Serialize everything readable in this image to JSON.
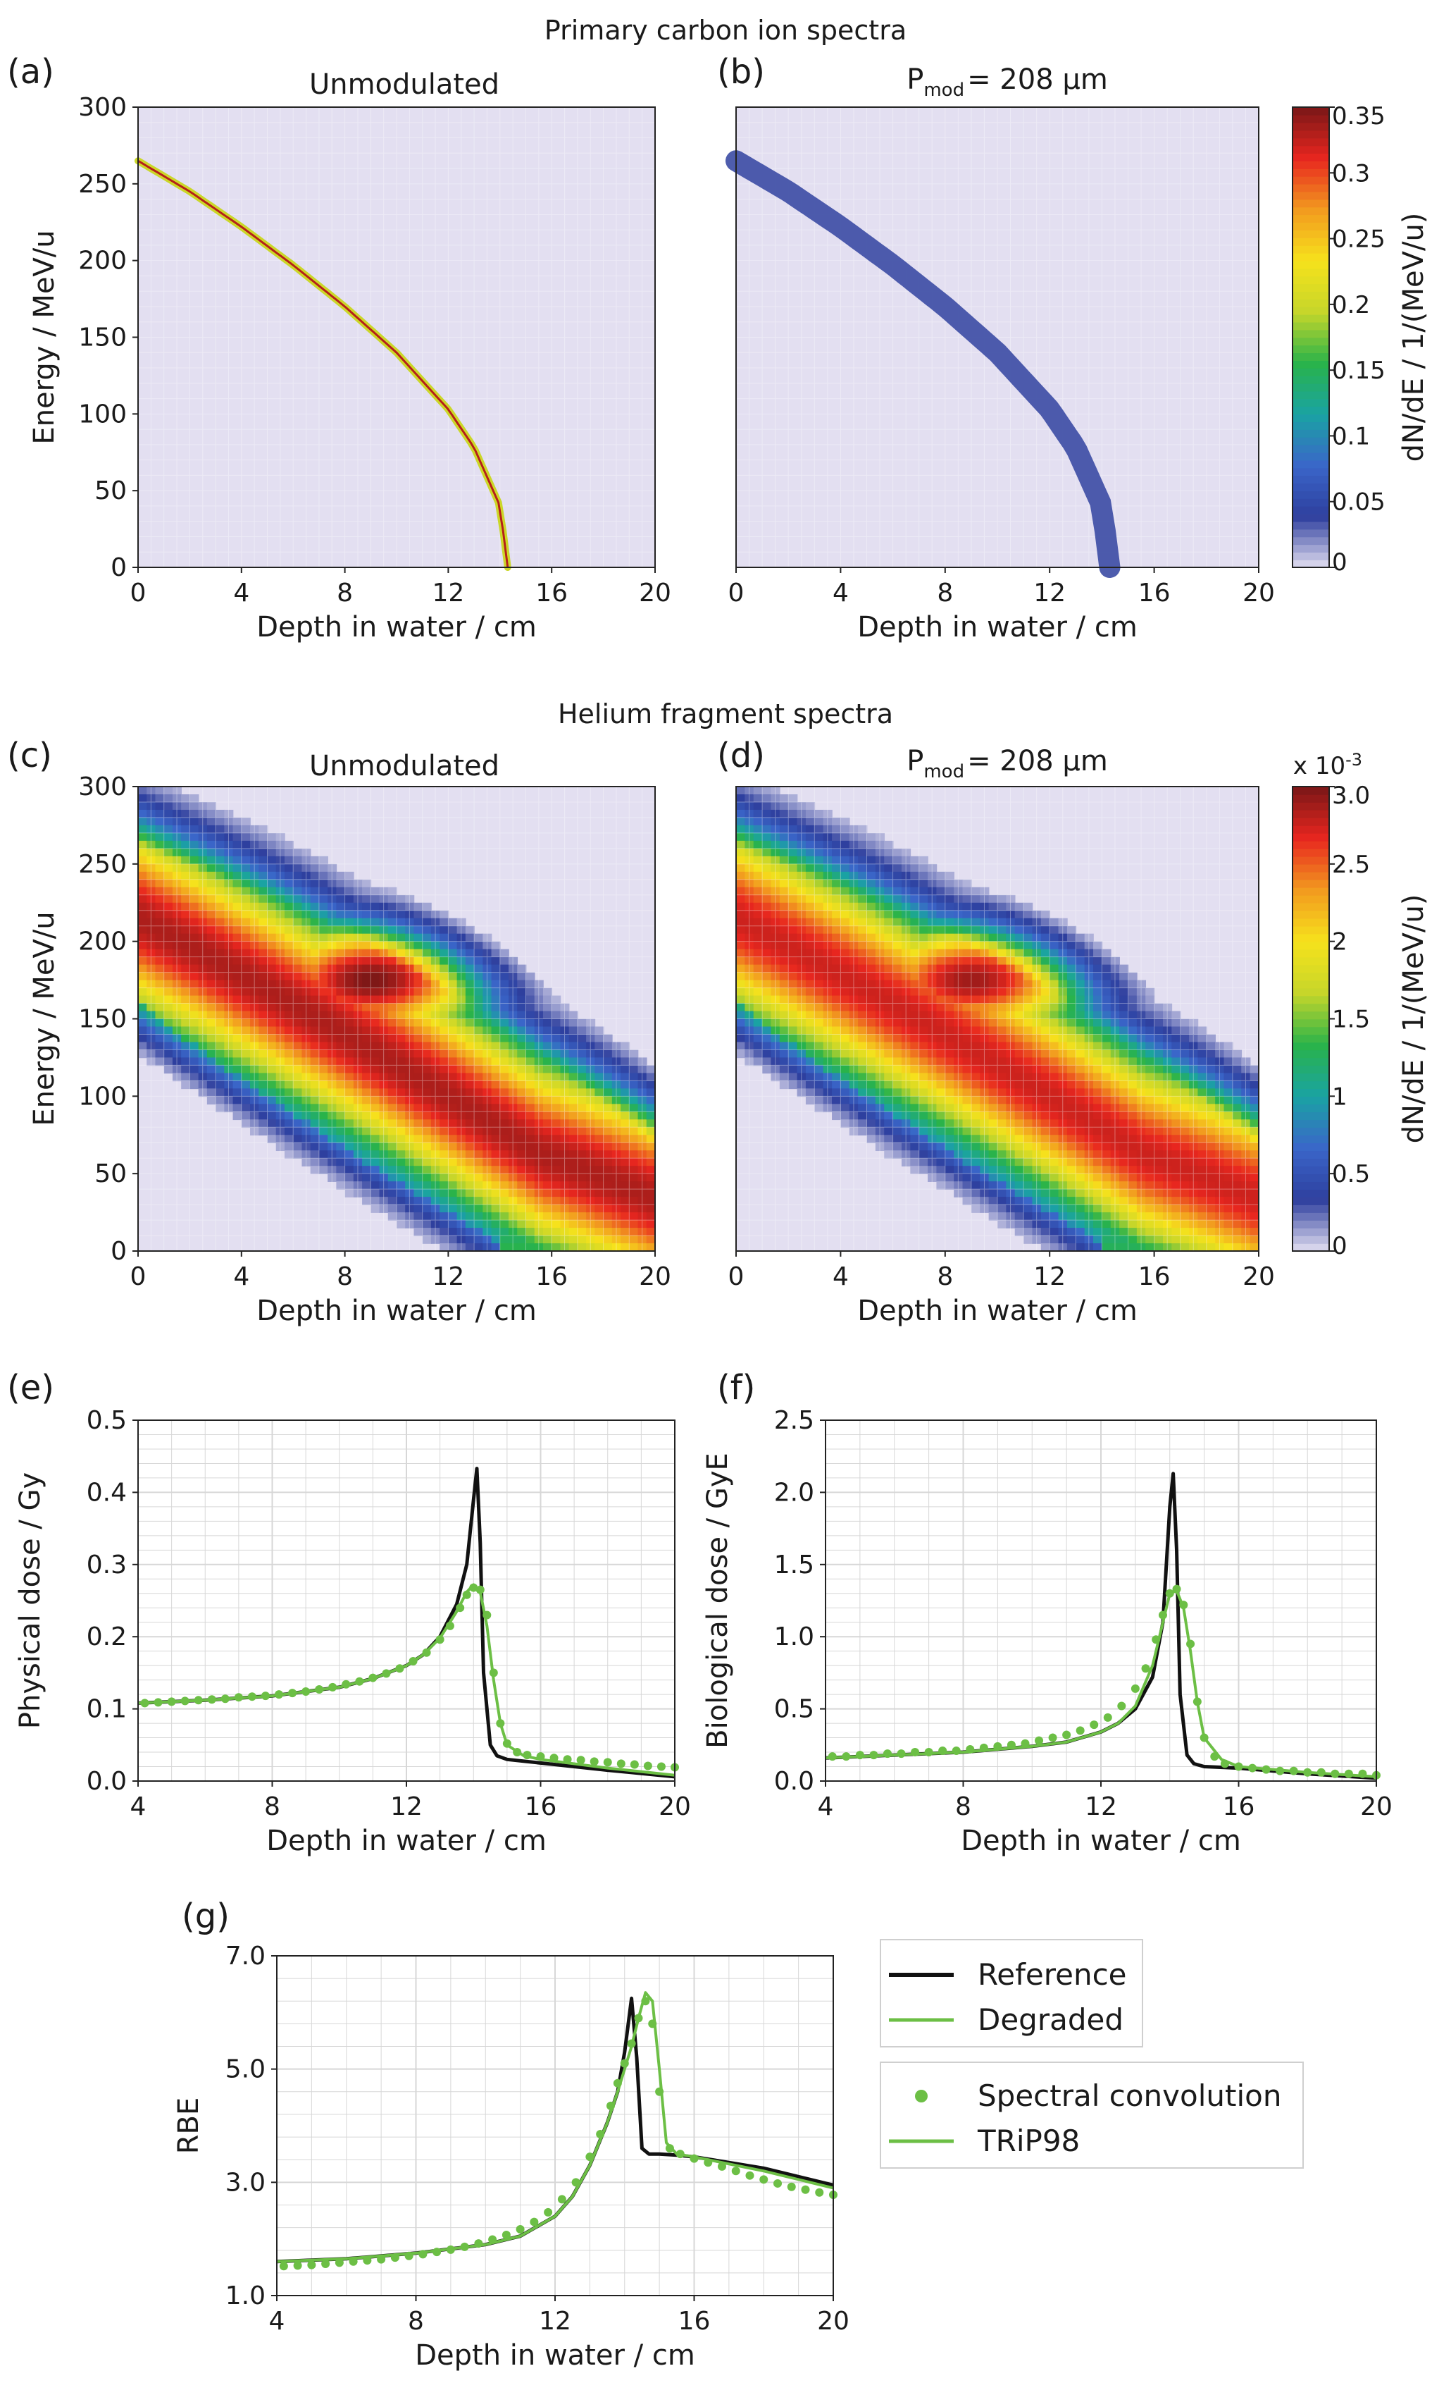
{
  "figure": {
    "section_titles": [
      "Primary carbon ion spectra",
      "Helium fragment spectra"
    ],
    "panel_letters": [
      "(a)",
      "(b)",
      "(c)",
      "(d)",
      "(e)",
      "(f)",
      "(g)"
    ],
    "panel_titles": {
      "a": "Unmodulated",
      "b_prefix": "P",
      "b_sub": "mod",
      "b_suffix": "= 208 µm",
      "c": "Unmodulated",
      "d_prefix": "P",
      "d_sub": "mod",
      "d_suffix": "= 208 µm"
    },
    "colormap": {
      "name": "jet-like",
      "stops": [
        "#e3dff1",
        "#2e3f9e",
        "#3a66c9",
        "#1aa3a3",
        "#29b34a",
        "#c6d62a",
        "#f6e21c",
        "#f29a1f",
        "#e8261f",
        "#7a1717"
      ]
    },
    "colors": {
      "reference": "#111111",
      "degraded": "#6cbf45",
      "grid": "#d7d7d7",
      "background_low": "#e3dff1"
    }
  },
  "chart_data": [
    {
      "id": "a",
      "type": "heatmap",
      "title": "Unmodulated",
      "xlabel": "Depth in water / cm",
      "ylabel": "Energy / MeV/u",
      "xlim": [
        0,
        20
      ],
      "ylim": [
        0,
        300
      ],
      "xticks": [
        0,
        4,
        8,
        12,
        16,
        20
      ],
      "yticks": [
        0,
        50,
        100,
        150,
        200,
        250,
        300
      ],
      "ridge": {
        "x": [
          0,
          2,
          4,
          6,
          8,
          10,
          12,
          13,
          14,
          14.3
        ],
        "y": [
          265,
          245,
          222,
          197,
          170,
          140,
          103,
          78,
          40,
          0
        ]
      },
      "ridge_peak": 0.33,
      "colorbar": {
        "label": "dN/dE  /  1/(MeV/u)",
        "ticks": [
          0,
          0.05,
          0.1,
          0.15,
          0.2,
          0.25,
          0.3,
          0.35
        ],
        "lim": [
          0,
          0.35
        ],
        "multiplier": ""
      }
    },
    {
      "id": "b",
      "type": "heatmap",
      "title": "P mod = 208 µm",
      "xlabel": "Depth in water / cm",
      "ylabel": "",
      "xlim": [
        0,
        20
      ],
      "ylim": [
        0,
        300
      ],
      "xticks": [
        0,
        4,
        8,
        12,
        16,
        20
      ],
      "ridge": {
        "x": [
          0,
          2,
          4,
          6,
          8,
          10,
          12,
          13,
          14,
          14.3
        ],
        "y": [
          265,
          245,
          222,
          197,
          170,
          140,
          103,
          78,
          40,
          0
        ]
      },
      "ridge_peak": 0.06
    },
    {
      "id": "c",
      "type": "heatmap",
      "title": "Unmodulated",
      "xlabel": "Depth in water / cm",
      "ylabel": "Energy / MeV/u",
      "xlim": [
        0,
        20
      ],
      "ylim": [
        0,
        300
      ],
      "xticks": [
        0,
        4,
        8,
        12,
        16,
        20
      ],
      "yticks": [
        0,
        50,
        100,
        150,
        200,
        250,
        300
      ],
      "peak_value": 0.0029,
      "peak_location": {
        "x": 9,
        "y": 175
      },
      "colorbar": {
        "label": "dN/dE  /  1/(MeV/u)",
        "ticks": [
          0,
          0.5,
          1,
          1.5,
          2,
          2.5,
          3.0
        ],
        "tick_labels": [
          "0",
          "0.5",
          "1",
          "1.5",
          "2",
          "2.5",
          "3.0"
        ],
        "lim": [
          0,
          3.0
        ],
        "multiplier": "x 10",
        "multiplier_exp": "-3"
      }
    },
    {
      "id": "d",
      "type": "heatmap",
      "title": "P mod = 208 µm",
      "xlabel": "Depth in water / cm",
      "ylabel": "",
      "xlim": [
        0,
        20
      ],
      "ylim": [
        0,
        300
      ],
      "xticks": [
        0,
        4,
        8,
        12,
        16,
        20
      ],
      "peak_value": 0.0028,
      "peak_location": {
        "x": 9,
        "y": 175
      }
    },
    {
      "id": "e",
      "type": "line",
      "xlabel": "Depth in water / cm",
      "ylabel": "Physical dose / Gy",
      "xlim": [
        4,
        20
      ],
      "ylim": [
        0,
        0.5
      ],
      "xticks": [
        4,
        8,
        12,
        16,
        20
      ],
      "yticks": [
        0.0,
        0.1,
        0.2,
        0.3,
        0.4,
        0.5
      ],
      "ytick_labels": [
        "0.0",
        "0.1",
        "0.2",
        "0.3",
        "0.4",
        "0.5"
      ],
      "series": [
        {
          "role": "reference",
          "x": [
            4,
            6,
            8,
            10,
            11,
            12,
            12.5,
            13,
            13.5,
            13.8,
            14.0,
            14.1,
            14.2,
            14.3,
            14.5,
            14.7,
            15,
            16,
            18,
            20
          ],
          "y": [
            0.108,
            0.112,
            0.118,
            0.13,
            0.142,
            0.16,
            0.175,
            0.2,
            0.245,
            0.3,
            0.39,
            0.433,
            0.33,
            0.15,
            0.05,
            0.035,
            0.03,
            0.025,
            0.015,
            0.006
          ]
        },
        {
          "role": "trip98",
          "x": [
            4,
            6,
            8,
            10,
            11,
            12,
            12.5,
            13,
            13.5,
            13.8,
            14.0,
            14.2,
            14.4,
            14.6,
            14.8,
            15,
            15.5,
            16,
            18,
            20
          ],
          "y": [
            0.108,
            0.112,
            0.118,
            0.13,
            0.142,
            0.16,
            0.175,
            0.198,
            0.235,
            0.262,
            0.272,
            0.262,
            0.215,
            0.14,
            0.08,
            0.05,
            0.035,
            0.03,
            0.018,
            0.008
          ]
        },
        {
          "role": "convolution",
          "x": [
            4.2,
            4.6,
            5.0,
            5.4,
            5.8,
            6.2,
            6.6,
            7.0,
            7.4,
            7.8,
            8.2,
            8.6,
            9.0,
            9.4,
            9.8,
            10.2,
            10.6,
            11.0,
            11.4,
            11.8,
            12.2,
            12.6,
            13.0,
            13.3,
            13.6,
            13.8,
            14.0,
            14.2,
            14.4,
            14.6,
            14.8,
            15.0,
            15.3,
            15.6,
            16.0,
            16.4,
            16.8,
            17.2,
            17.6,
            18.0,
            18.4,
            18.8,
            19.2,
            19.6,
            20.0
          ],
          "y": [
            0.108,
            0.109,
            0.11,
            0.111,
            0.112,
            0.113,
            0.114,
            0.116,
            0.117,
            0.118,
            0.12,
            0.122,
            0.124,
            0.127,
            0.13,
            0.134,
            0.138,
            0.143,
            0.149,
            0.156,
            0.166,
            0.178,
            0.196,
            0.215,
            0.24,
            0.258,
            0.268,
            0.265,
            0.23,
            0.15,
            0.08,
            0.052,
            0.04,
            0.036,
            0.034,
            0.032,
            0.03,
            0.029,
            0.027,
            0.026,
            0.024,
            0.023,
            0.021,
            0.02,
            0.019
          ]
        }
      ]
    },
    {
      "id": "f",
      "type": "line",
      "xlabel": "Depth in water / cm",
      "ylabel": "Biological dose / GyE",
      "xlim": [
        4,
        20
      ],
      "ylim": [
        0,
        2.5
      ],
      "xticks": [
        4,
        8,
        12,
        16,
        20
      ],
      "yticks": [
        0.0,
        0.5,
        1.0,
        1.5,
        2.0,
        2.5
      ],
      "ytick_labels": [
        "0.0",
        "0.5",
        "1.0",
        "1.5",
        "2.0",
        "2.5"
      ],
      "series": [
        {
          "role": "reference",
          "x": [
            4,
            6,
            8,
            10,
            11,
            12,
            12.5,
            13,
            13.5,
            13.8,
            14.0,
            14.1,
            14.2,
            14.3,
            14.5,
            14.7,
            15,
            16,
            18,
            20
          ],
          "y": [
            0.16,
            0.18,
            0.2,
            0.24,
            0.27,
            0.34,
            0.4,
            0.5,
            0.72,
            1.1,
            1.9,
            2.13,
            1.6,
            0.6,
            0.18,
            0.12,
            0.1,
            0.09,
            0.05,
            0.02
          ]
        },
        {
          "role": "trip98",
          "x": [
            4,
            6,
            8,
            10,
            11,
            12,
            12.5,
            13,
            13.5,
            13.8,
            14.0,
            14.2,
            14.4,
            14.6,
            14.8,
            15,
            15.5,
            16,
            18,
            20
          ],
          "y": [
            0.16,
            0.18,
            0.2,
            0.24,
            0.27,
            0.34,
            0.4,
            0.52,
            0.8,
            1.1,
            1.3,
            1.32,
            1.2,
            0.9,
            0.55,
            0.3,
            0.15,
            0.1,
            0.06,
            0.03
          ]
        },
        {
          "role": "convolution",
          "x": [
            4.2,
            4.6,
            5.0,
            5.4,
            5.8,
            6.2,
            6.6,
            7.0,
            7.4,
            7.8,
            8.2,
            8.6,
            9.0,
            9.4,
            9.8,
            10.2,
            10.6,
            11.0,
            11.4,
            11.8,
            12.2,
            12.6,
            13.0,
            13.3,
            13.6,
            13.8,
            14.0,
            14.2,
            14.4,
            14.6,
            14.8,
            15.0,
            15.3,
            15.6,
            16.0,
            16.4,
            16.8,
            17.2,
            17.6,
            18.0,
            18.4,
            18.8,
            19.2,
            19.6,
            20.0
          ],
          "y": [
            0.17,
            0.17,
            0.18,
            0.18,
            0.19,
            0.19,
            0.2,
            0.2,
            0.21,
            0.21,
            0.22,
            0.23,
            0.24,
            0.25,
            0.26,
            0.28,
            0.3,
            0.32,
            0.35,
            0.39,
            0.44,
            0.52,
            0.64,
            0.78,
            0.98,
            1.15,
            1.3,
            1.33,
            1.22,
            0.95,
            0.55,
            0.3,
            0.17,
            0.12,
            0.1,
            0.09,
            0.08,
            0.07,
            0.07,
            0.06,
            0.06,
            0.05,
            0.05,
            0.05,
            0.04
          ]
        }
      ]
    },
    {
      "id": "g",
      "type": "line",
      "xlabel": "Depth in water / cm",
      "ylabel": "RBE",
      "xlim": [
        4,
        20
      ],
      "ylim": [
        1.0,
        7.0
      ],
      "xticks": [
        4,
        8,
        12,
        16,
        20
      ],
      "yticks": [
        1.0,
        3.0,
        5.0,
        7.0
      ],
      "ytick_labels": [
        "1.0",
        "3.0",
        "5.0",
        "7.0"
      ],
      "series": [
        {
          "role": "reference",
          "x": [
            4,
            6,
            8,
            10,
            11,
            12,
            12.5,
            13,
            13.5,
            13.8,
            14.0,
            14.2,
            14.35,
            14.5,
            14.7,
            15,
            15.5,
            16,
            18,
            20
          ],
          "y": [
            1.6,
            1.65,
            1.75,
            1.9,
            2.05,
            2.4,
            2.75,
            3.3,
            4.05,
            4.6,
            5.3,
            6.25,
            5.2,
            3.6,
            3.5,
            3.5,
            3.48,
            3.45,
            3.25,
            2.95
          ]
        },
        {
          "role": "trip98",
          "x": [
            4,
            6,
            8,
            10,
            11,
            12,
            12.5,
            13,
            13.5,
            13.8,
            14.0,
            14.2,
            14.4,
            14.6,
            14.8,
            15.0,
            15.2,
            15.5,
            16,
            18,
            20
          ],
          "y": [
            1.6,
            1.65,
            1.75,
            1.9,
            2.05,
            2.4,
            2.75,
            3.3,
            4.05,
            4.6,
            5.0,
            5.4,
            5.9,
            6.35,
            6.2,
            5.0,
            3.7,
            3.5,
            3.45,
            3.2,
            2.9
          ]
        },
        {
          "role": "convolution",
          "x": [
            4.2,
            4.6,
            5.0,
            5.4,
            5.8,
            6.2,
            6.6,
            7.0,
            7.4,
            7.8,
            8.2,
            8.6,
            9.0,
            9.4,
            9.8,
            10.2,
            10.6,
            11.0,
            11.4,
            11.8,
            12.2,
            12.6,
            13.0,
            13.3,
            13.6,
            13.8,
            14.0,
            14.2,
            14.4,
            14.6,
            14.8,
            15.0,
            15.3,
            15.6,
            16.0,
            16.4,
            16.8,
            17.2,
            17.6,
            18.0,
            18.4,
            18.8,
            19.2,
            19.6,
            20.0
          ],
          "y": [
            1.52,
            1.53,
            1.54,
            1.56,
            1.58,
            1.6,
            1.62,
            1.64,
            1.67,
            1.7,
            1.73,
            1.77,
            1.81,
            1.86,
            1.92,
            1.99,
            2.07,
            2.17,
            2.3,
            2.47,
            2.7,
            3.0,
            3.45,
            3.85,
            4.35,
            4.75,
            5.1,
            5.45,
            5.9,
            6.2,
            5.8,
            4.6,
            3.6,
            3.5,
            3.42,
            3.35,
            3.28,
            3.2,
            3.12,
            3.05,
            2.98,
            2.92,
            2.87,
            2.82,
            2.78
          ]
        }
      ]
    }
  ],
  "legend": {
    "group1": [
      {
        "label": "Reference",
        "role": "reference"
      },
      {
        "label": "Degraded",
        "role": "degraded"
      }
    ],
    "group2": [
      {
        "label": "Spectral convolution",
        "role": "convolution"
      },
      {
        "label": "TRiP98",
        "role": "trip98"
      }
    ]
  }
}
